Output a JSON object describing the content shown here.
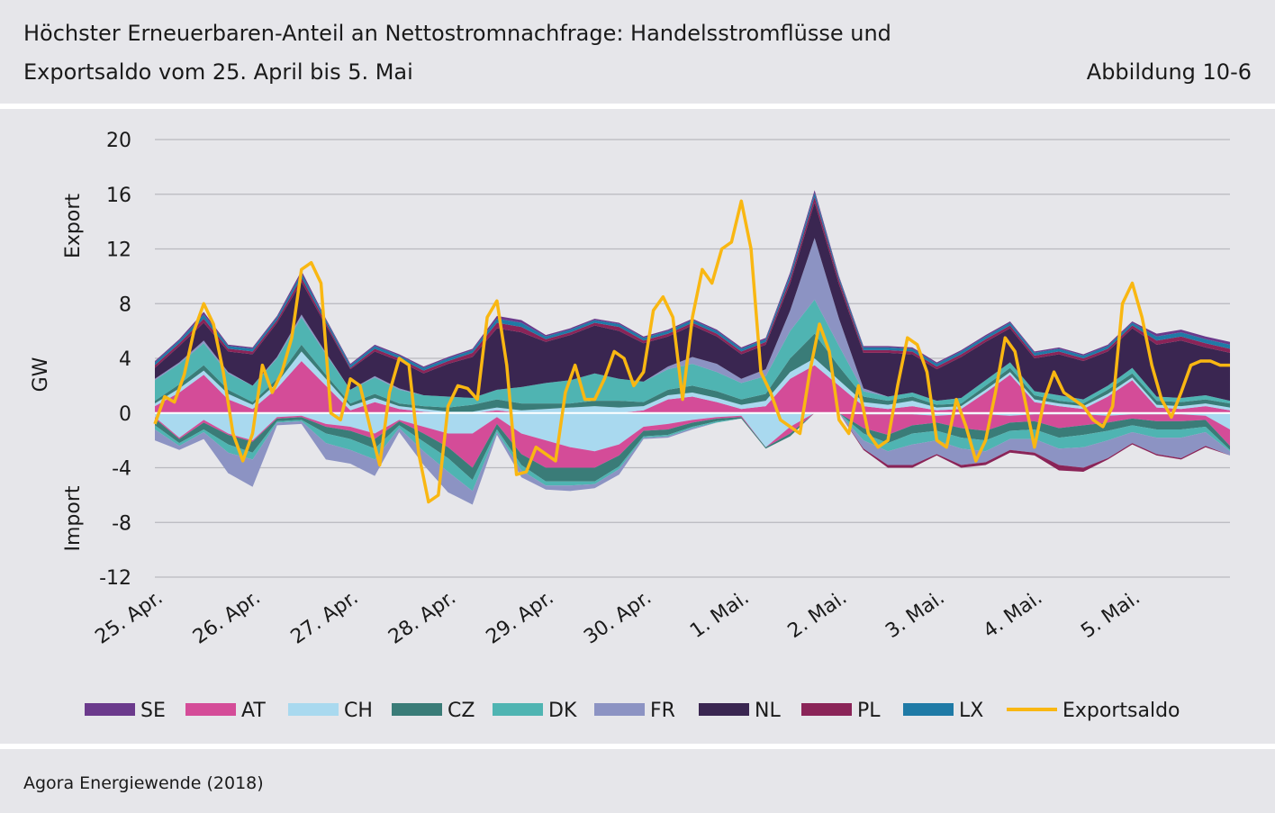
{
  "header": {
    "title_line1": "Höchster Erneuerbaren-Anteil an Nettostromnachfrage: Handelsstromflüsse und",
    "title_line2": "Exportsaldo vom 25. April bis 5. Mai",
    "figure_number": "Abbildung 10-6"
  },
  "footer": {
    "source": "Agora Energiewende (2018)"
  },
  "colors": {
    "SE": "#6b3a8c",
    "AT": "#d44c98",
    "CH": "#a9d9ef",
    "CZ": "#3a7c78",
    "DK": "#4fb4b2",
    "FR": "#8c93c3",
    "NL": "#3a2651",
    "PL": "#8a2458",
    "LX": "#1f7aa6",
    "Exportsaldo": "#f9b712",
    "grid": "#b9b9bf"
  },
  "chart_data": {
    "type": "area",
    "subtype": "stacked-area with line overlay",
    "ylabel": "GW",
    "ylabel_export": "Export",
    "ylabel_import": "Import",
    "ylim": [
      -12,
      20
    ],
    "yticks": [
      20,
      16,
      12,
      8,
      4,
      0,
      -4,
      -8,
      -12
    ],
    "ytick_labels": [
      "20",
      "16",
      "12",
      "8",
      "4",
      "0",
      "-4",
      "-8",
      "-12"
    ],
    "x_tick_labels": [
      "25. Apr.",
      "26. Apr.",
      "27. Apr.",
      "28. Apr.",
      "29. Apr.",
      "30. Apr.",
      "1. Mai.",
      "2. Mai.",
      "3. Mai.",
      "4. Mai.",
      "5. Mai."
    ],
    "legend": [
      "SE",
      "AT",
      "CH",
      "CZ",
      "DK",
      "FR",
      "NL",
      "PL",
      "LX",
      "Exportsaldo"
    ],
    "legend_position": "bottom",
    "grid": "horizontal",
    "x_days": [
      0,
      0.25,
      0.5,
      0.75,
      1,
      1.25,
      1.5,
      1.75,
      2,
      2.25,
      2.5,
      2.75,
      3,
      3.25,
      3.5,
      3.75,
      4,
      4.25,
      4.5,
      4.75,
      5,
      5.25,
      5.5,
      5.75,
      6,
      6.25,
      6.5,
      6.75,
      7,
      7.25,
      7.5,
      7.75,
      8,
      8.25,
      8.5,
      8.75,
      9,
      9.25,
      9.5,
      9.75,
      10,
      10.25,
      10.5,
      10.75,
      11
    ],
    "export_series": [
      {
        "name": "AT",
        "values": [
          0.5,
          1.5,
          2.8,
          1.0,
          0.3,
          1.8,
          3.8,
          2.0,
          0.2,
          0.8,
          0.3,
          0.1,
          0,
          0,
          0.2,
          0,
          0,
          0,
          0,
          0,
          0.2,
          1.0,
          1.2,
          0.8,
          0.3,
          0.5,
          2.5,
          3.5,
          2.0,
          0.5,
          0.3,
          0.5,
          0.2,
          0.3,
          1.5,
          2.8,
          0.8,
          0.5,
          0.3,
          1.2,
          2.4,
          0.4,
          0.3,
          0.5,
          0.2
        ]
      },
      {
        "name": "CH",
        "values": [
          0.2,
          0.3,
          0.3,
          0.4,
          0.3,
          0.4,
          0.7,
          0.5,
          0.3,
          0.3,
          0.2,
          0.2,
          0.1,
          0.1,
          0.2,
          0.2,
          0.3,
          0.4,
          0.5,
          0.4,
          0.3,
          0.3,
          0.3,
          0.3,
          0.3,
          0.4,
          0.5,
          0.5,
          0.4,
          0.3,
          0.3,
          0.4,
          0.2,
          0.2,
          0.2,
          0.2,
          0.2,
          0.2,
          0.2,
          0.2,
          0.2,
          0.2,
          0.2,
          0.2,
          0.2
        ]
      },
      {
        "name": "CZ",
        "values": [
          0.2,
          0.3,
          0.4,
          0.3,
          0.2,
          0.3,
          0.5,
          0.3,
          0.2,
          0.3,
          0.2,
          0.2,
          0.3,
          0.5,
          0.6,
          0.5,
          0.4,
          0.3,
          0.4,
          0.5,
          0.3,
          0.4,
          0.5,
          0.5,
          0.4,
          0.5,
          1.0,
          1.8,
          1.0,
          0.4,
          0.3,
          0.3,
          0.2,
          0.2,
          0.3,
          0.3,
          0.3,
          0.2,
          0.2,
          0.3,
          0.3,
          0.3,
          0.3,
          0.3,
          0.3
        ]
      },
      {
        "name": "DK",
        "values": [
          1.5,
          1.5,
          1.6,
          1.2,
          1.2,
          1.5,
          2.0,
          1.5,
          1.0,
          1.2,
          1.0,
          0.8,
          0.8,
          0.5,
          0.7,
          1.2,
          1.5,
          1.7,
          2.0,
          1.6,
          1.5,
          1.5,
          1.6,
          1.4,
          1.2,
          1.3,
          2.0,
          2.5,
          1.5,
          0.4,
          0.3,
          0.3,
          0.3,
          0.4,
          0.4,
          0.4,
          0.3,
          0.4,
          0.3,
          0.3,
          0.4,
          0.3,
          0.3,
          0.3,
          0.2
        ]
      },
      {
        "name": "FR",
        "values": [
          0.1,
          0.1,
          0.2,
          0.1,
          0,
          0.1,
          0.2,
          0.1,
          0,
          0.1,
          0.1,
          0,
          0,
          0,
          0,
          0,
          0,
          0,
          0,
          0,
          0,
          0.2,
          0.5,
          0.6,
          0.3,
          0.5,
          1.5,
          4.5,
          2.0,
          0.2,
          0,
          0,
          0,
          0,
          0,
          0,
          0,
          0,
          0,
          0,
          0,
          0,
          0,
          0,
          0
        ]
      },
      {
        "name": "NL",
        "values": [
          0.8,
          1.2,
          1.3,
          1.5,
          2.3,
          2.5,
          2.4,
          2.0,
          1.5,
          1.8,
          2.0,
          1.6,
          2.4,
          3.0,
          4.5,
          4.0,
          3.0,
          3.3,
          3.5,
          3.5,
          2.8,
          2.2,
          2.3,
          2.0,
          1.8,
          1.8,
          2.0,
          2.6,
          2.5,
          2.6,
          3.2,
          2.8,
          2.3,
          3.0,
          2.8,
          2.5,
          2.4,
          3.0,
          2.8,
          2.5,
          2.9,
          3.8,
          4.2,
          3.5,
          3.5
        ]
      },
      {
        "name": "PL",
        "values": [
          0.2,
          0.2,
          0.3,
          0.2,
          0.2,
          0.2,
          0.3,
          0.2,
          0.1,
          0.2,
          0.2,
          0.2,
          0.2,
          0.3,
          0.4,
          0.4,
          0.2,
          0.2,
          0.2,
          0.3,
          0.2,
          0.2,
          0.2,
          0.2,
          0.2,
          0.2,
          0.3,
          0.4,
          0.3,
          0.2,
          0.2,
          0.2,
          0.2,
          0.2,
          0.2,
          0.2,
          0.2,
          0.2,
          0.2,
          0.2,
          0.2,
          0.3,
          0.3,
          0.3,
          0.3
        ]
      },
      {
        "name": "LX",
        "values": [
          0.2,
          0.2,
          0.3,
          0.2,
          0.2,
          0.2,
          0.3,
          0.2,
          0.2,
          0.2,
          0.2,
          0.2,
          0.2,
          0.2,
          0.3,
          0.3,
          0.2,
          0.2,
          0.2,
          0.2,
          0.2,
          0.2,
          0.2,
          0.2,
          0.2,
          0.2,
          0.3,
          0.3,
          0.2,
          0.2,
          0.2,
          0.2,
          0.2,
          0.2,
          0.2,
          0.2,
          0.2,
          0.2,
          0.2,
          0.2,
          0.2,
          0.3,
          0.3,
          0.3,
          0.3
        ]
      },
      {
        "name": "SE",
        "values": [
          0.1,
          0.1,
          0.2,
          0.1,
          0.1,
          0.1,
          0.2,
          0.1,
          0.1,
          0.1,
          0.1,
          0.1,
          0.1,
          0.1,
          0.2,
          0.2,
          0.1,
          0.1,
          0.1,
          0.1,
          0.1,
          0.1,
          0.1,
          0.1,
          0.1,
          0.1,
          0.2,
          0.2,
          0.1,
          0.1,
          0.1,
          0.1,
          0.1,
          0.1,
          0.1,
          0.1,
          0.1,
          0.1,
          0.1,
          0.1,
          0.1,
          0.2,
          0.2,
          0.2,
          0.2
        ]
      }
    ],
    "import_series": [
      {
        "name": "CH",
        "values": [
          -0.3,
          -1.8,
          -0.5,
          -1.5,
          -2.0,
          -0.3,
          -0.2,
          -0.8,
          -1.0,
          -1.5,
          -0.5,
          -1.0,
          -1.5,
          -1.5,
          -0.3,
          -1.5,
          -2.0,
          -2.5,
          -2.8,
          -2.3,
          -1.0,
          -0.8,
          -0.5,
          -0.3,
          -0.2,
          -2.5,
          -1.0,
          0,
          0,
          -0.1,
          -0.1,
          -0.1,
          -0.2,
          -0.1,
          -0.1,
          -0.2,
          -0.1,
          -0.1,
          -0.1,
          -0.2,
          -0.1,
          -0.1,
          -0.1,
          -0.2,
          -1.2
        ]
      },
      {
        "name": "AT",
        "values": [
          -0.1,
          -0.1,
          -0.2,
          -0.1,
          -0.1,
          -0.1,
          -0.1,
          -0.2,
          -0.3,
          -0.4,
          -0.1,
          -0.5,
          -1.0,
          -2.5,
          -0.5,
          -1.5,
          -2.0,
          -1.5,
          -1.2,
          -0.8,
          -0.3,
          -0.4,
          -0.2,
          -0.1,
          -0.1,
          0,
          -0.5,
          0,
          0,
          -1.0,
          -1.5,
          -0.8,
          -0.5,
          -1.0,
          -1.2,
          -0.5,
          -0.5,
          -1.0,
          -0.8,
          -0.5,
          -0.3,
          -0.5,
          -0.5,
          -0.3,
          -1.2
        ]
      },
      {
        "name": "CZ",
        "values": [
          -0.5,
          -0.3,
          -0.5,
          -0.7,
          -0.8,
          -0.2,
          -0.2,
          -0.5,
          -0.6,
          -0.7,
          -0.3,
          -0.6,
          -0.8,
          -0.9,
          -0.4,
          -0.8,
          -1.0,
          -1.0,
          -1.0,
          -0.8,
          -0.4,
          -0.4,
          -0.3,
          -0.2,
          -0.1,
          -0.1,
          -0.2,
          0,
          0,
          -0.4,
          -0.6,
          -0.6,
          -0.6,
          -0.7,
          -0.7,
          -0.6,
          -0.6,
          -0.7,
          -0.7,
          -0.6,
          -0.5,
          -0.6,
          -0.6,
          -0.5,
          -0.3
        ]
      },
      {
        "name": "DK",
        "values": [
          -0.3,
          -0.2,
          -0.2,
          -0.6,
          -0.5,
          -0.1,
          -0.1,
          -0.7,
          -0.8,
          -0.8,
          -0.2,
          -0.7,
          -1.0,
          -0.8,
          -0.2,
          -0.4,
          -0.3,
          -0.3,
          -0.2,
          -0.2,
          -0.1,
          -0.1,
          -0.1,
          -0.1,
          0,
          0,
          0,
          0,
          0,
          -0.5,
          -0.6,
          -0.8,
          -0.7,
          -0.8,
          -0.8,
          -0.6,
          -0.7,
          -0.8,
          -0.9,
          -0.7,
          -0.5,
          -0.6,
          -0.6,
          -0.4,
          -0.1
        ]
      },
      {
        "name": "FR",
        "values": [
          -0.8,
          -0.3,
          -0.5,
          -1.5,
          -2.0,
          -0.2,
          -0.2,
          -1.2,
          -1.0,
          -1.2,
          -0.3,
          -1.0,
          -1.5,
          -1.0,
          -0.2,
          -0.5,
          -0.3,
          -0.4,
          -0.3,
          -0.4,
          -0.1,
          -0.1,
          -0.1,
          0,
          0,
          0,
          0,
          0,
          0,
          -0.6,
          -1.0,
          -1.5,
          -1.0,
          -1.2,
          -0.8,
          -0.8,
          -1.0,
          -1.2,
          -1.5,
          -1.3,
          -0.8,
          -1.2,
          -1.5,
          -1.0,
          -0.3
        ]
      },
      {
        "name": "PL",
        "values": [
          0,
          0,
          0,
          0,
          0,
          0,
          0,
          0,
          0,
          0,
          0,
          0,
          0,
          0,
          0,
          0,
          0,
          0,
          0,
          0,
          0,
          0,
          0,
          0,
          0,
          0,
          0,
          0,
          0,
          -0.1,
          -0.2,
          -0.2,
          -0.1,
          -0.2,
          -0.2,
          -0.2,
          -0.2,
          -0.4,
          -0.3,
          -0.1,
          -0.1,
          -0.1,
          -0.1,
          -0.1,
          0
        ]
      }
    ],
    "line_series": {
      "name": "Exportsaldo",
      "x": [
        0,
        0.1,
        0.2,
        0.3,
        0.4,
        0.5,
        0.6,
        0.7,
        0.8,
        0.9,
        1.0,
        1.1,
        1.2,
        1.3,
        1.4,
        1.5,
        1.6,
        1.7,
        1.8,
        1.9,
        2.0,
        2.1,
        2.2,
        2.3,
        2.4,
        2.5,
        2.6,
        2.7,
        2.8,
        2.9,
        3.0,
        3.1,
        3.2,
        3.3,
        3.4,
        3.5,
        3.6,
        3.7,
        3.8,
        3.9,
        4.0,
        4.1,
        4.2,
        4.3,
        4.4,
        4.5,
        4.6,
        4.7,
        4.8,
        4.9,
        5.0,
        5.1,
        5.2,
        5.3,
        5.4,
        5.5,
        5.6,
        5.7,
        5.8,
        5.9,
        6.0,
        6.1,
        6.2,
        6.3,
        6.4,
        6.5,
        6.6,
        6.7,
        6.8,
        6.9,
        7.0,
        7.1,
        7.2,
        7.3,
        7.4,
        7.5,
        7.6,
        7.7,
        7.8,
        7.9,
        8.0,
        8.1,
        8.2,
        8.3,
        8.4,
        8.5,
        8.6,
        8.7,
        8.8,
        8.9,
        9.0,
        9.1,
        9.2,
        9.3,
        9.4,
        9.5,
        9.6,
        9.7,
        9.8,
        9.9,
        10.0,
        10.1,
        10.2,
        10.3,
        10.4,
        10.5,
        10.6,
        10.7,
        10.8,
        10.9,
        11.0
      ],
      "values": [
        -0.8,
        1.2,
        0.8,
        2.8,
        6.0,
        8.0,
        6.5,
        3.0,
        -1.5,
        -3.5,
        -1.5,
        3.5,
        1.5,
        3.0,
        5.5,
        10.5,
        11.0,
        9.5,
        0,
        -0.5,
        2.5,
        2.0,
        -1.0,
        -3.8,
        1.5,
        4.0,
        3.5,
        -3.0,
        -6.5,
        -6.0,
        0.5,
        2.0,
        1.8,
        1.0,
        7.0,
        8.2,
        3.5,
        -4.5,
        -4.3,
        -2.5,
        -3.0,
        -3.5,
        1.5,
        3.5,
        1.0,
        1.0,
        2.5,
        4.5,
        4.0,
        2.0,
        3.0,
        7.5,
        8.5,
        7.0,
        1.0,
        7.0,
        10.5,
        9.5,
        12.0,
        12.5,
        15.5,
        12.0,
        3.0,
        1.5,
        -0.5,
        -1.0,
        -1.5,
        3.0,
        6.5,
        4.5,
        -0.5,
        -1.5,
        2.0,
        -1.5,
        -2.5,
        -2.0,
        2.0,
        5.5,
        5.0,
        3.0,
        -2.0,
        -2.5,
        1.0,
        -1.0,
        -3.5,
        -2.0,
        1.5,
        5.5,
        4.5,
        1.0,
        -2.5,
        1.0,
        3.0,
        1.5,
        1.0,
        0.5,
        -0.5,
        -1.0,
        0.5,
        8.0,
        9.5,
        7.0,
        3.5,
        1.0,
        -0.3,
        1.5,
        3.5,
        3.8,
        3.8,
        3.5,
        3.5
      ]
    }
  },
  "legend_items": [
    {
      "key": "SE",
      "label": "SE"
    },
    {
      "key": "AT",
      "label": "AT"
    },
    {
      "key": "CH",
      "label": "CH"
    },
    {
      "key": "CZ",
      "label": "CZ"
    },
    {
      "key": "DK",
      "label": "DK"
    },
    {
      "key": "FR",
      "label": "FR"
    },
    {
      "key": "NL",
      "label": "NL"
    },
    {
      "key": "PL",
      "label": "PL"
    },
    {
      "key": "LX",
      "label": "LX"
    },
    {
      "key": "Exportsaldo",
      "label": "Exportsaldo"
    }
  ]
}
